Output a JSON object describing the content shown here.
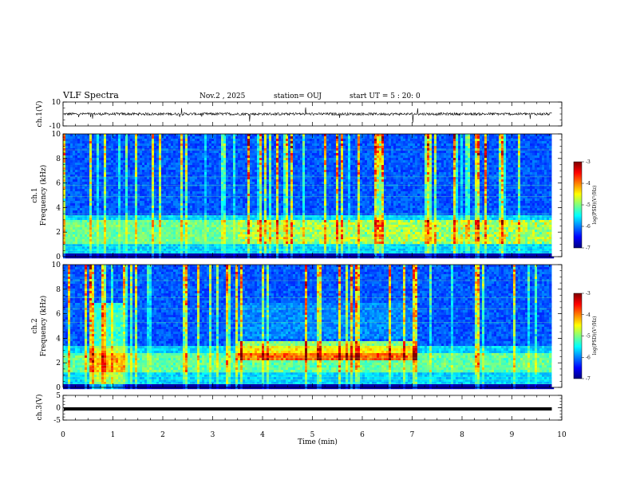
{
  "header": {
    "title": "VLF Spectra",
    "date": "Nov.2 , 2025",
    "station": "station= OUJ",
    "start": "start UT = 5 : 20: 0"
  },
  "chart_data": [
    {
      "type": "line",
      "panel": "ch1-waveform",
      "ylabel": "ch.1(V)",
      "ylim": [
        -10,
        10
      ],
      "yticks": [
        "10",
        "-10"
      ],
      "baseline": 0,
      "color": "#000000"
    },
    {
      "type": "heatmap",
      "panel": "ch1-spectrogram",
      "ylabel_line1": "ch.1",
      "ylabel_line2": "Frequency (kHz)",
      "ylim": [
        0,
        10
      ],
      "yticks": [
        "0",
        "2",
        "4",
        "6",
        "8",
        "10"
      ],
      "colorbar": {
        "label": "log(PSD)(V²/Hz)",
        "range": [
          -7,
          -3
        ],
        "ticks": [
          "-3",
          "-4",
          "-5",
          "-6",
          "-7"
        ]
      },
      "features": {
        "emission_band_khz": [
          1.2,
          3.0
        ],
        "emission_enhanced_after_min": 3.5
      }
    },
    {
      "type": "heatmap",
      "panel": "ch2-spectrogram",
      "ylabel_line1": "ch.2",
      "ylabel_line2": "Frequency (kHz)",
      "ylim": [
        0,
        10
      ],
      "yticks": [
        "0",
        "2",
        "4",
        "6",
        "8",
        "10"
      ],
      "colorbar": {
        "label": "log(PSD)(V²/Hz)",
        "range": [
          -7,
          -3
        ],
        "ticks": [
          "-3",
          "-4",
          "-5",
          "-6",
          "-7"
        ]
      },
      "features": {
        "broadband_interval_min": [
          0.55,
          1.2
        ],
        "emission_block_min": [
          3.5,
          7.1
        ],
        "emission_block_khz": [
          2.4,
          3.8
        ]
      }
    },
    {
      "type": "line",
      "panel": "ch3-waveform",
      "ylabel": "ch.3(V)",
      "ylim": [
        -5,
        5
      ],
      "yticks": [
        "5",
        "0",
        "-5"
      ],
      "level": -0.5,
      "color": "#000000"
    }
  ],
  "xaxis": {
    "label": "Time (min)",
    "range": [
      0,
      10
    ],
    "ticks": [
      "0",
      "1",
      "2",
      "3",
      "4",
      "5",
      "6",
      "7",
      "8",
      "9",
      "10"
    ],
    "data_end": 9.8
  },
  "colors": {
    "jet": [
      "#00007f",
      "#0000ff",
      "#007fff",
      "#00ffff",
      "#7fff7f",
      "#ffff00",
      "#ff7f00",
      "#ff0000",
      "#7f0000"
    ]
  }
}
